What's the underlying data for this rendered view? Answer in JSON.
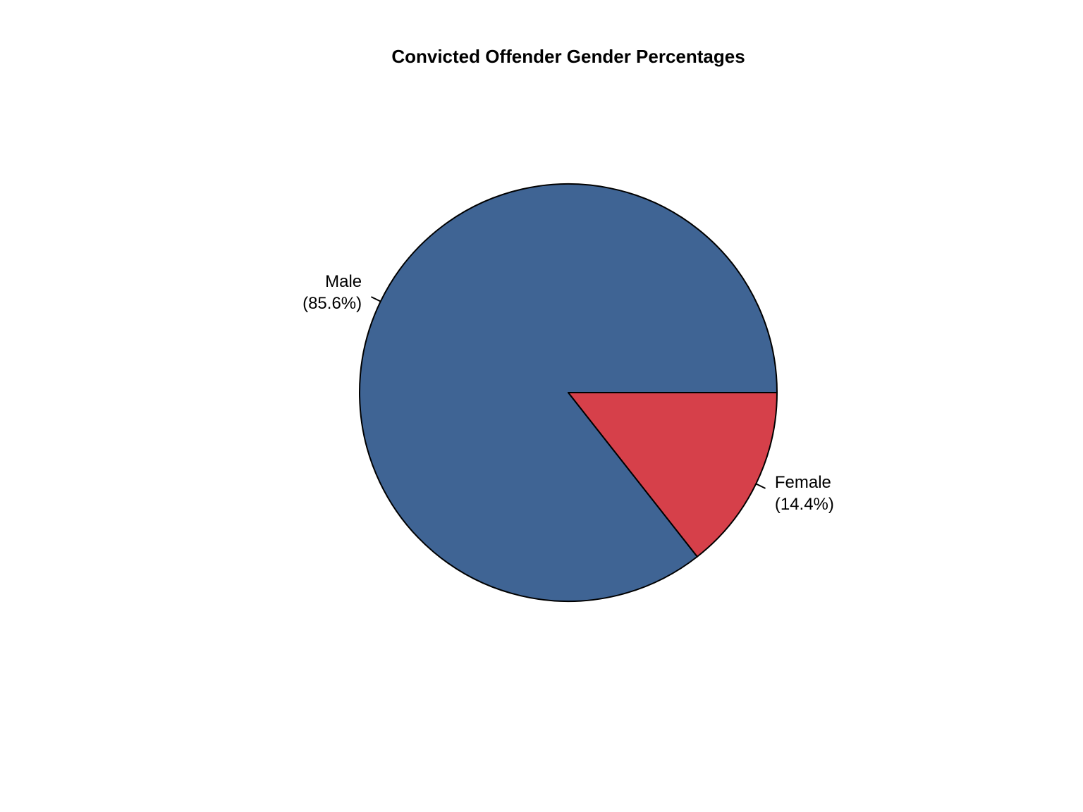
{
  "chart_data": {
    "type": "pie",
    "title": "Convicted Offender Gender Percentages",
    "slices": [
      {
        "label": "Male",
        "percent_label": "(85.6%)",
        "value": 85.6,
        "color": "#3f6494"
      },
      {
        "label": "Female",
        "percent_label": "(14.4%)",
        "value": 14.4,
        "color": "#d6404a"
      }
    ],
    "direction": "counterclockwise",
    "start_angle_deg": 0,
    "legend": "none",
    "grid": false
  }
}
